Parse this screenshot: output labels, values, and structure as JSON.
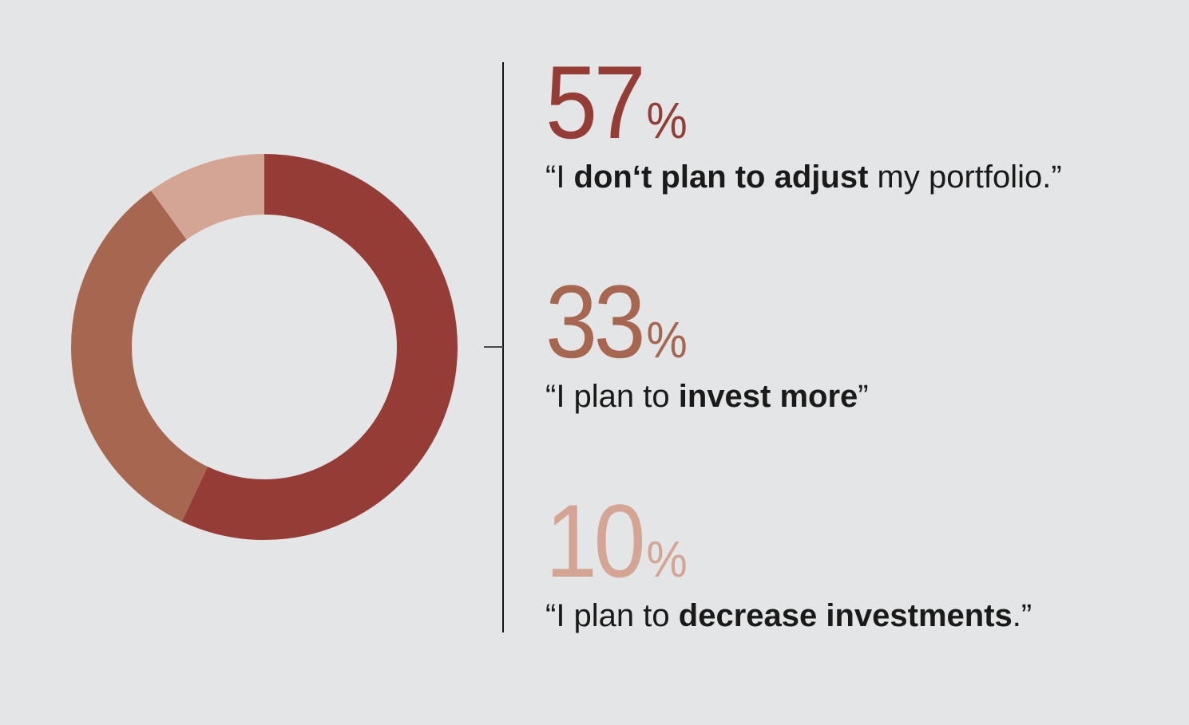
{
  "background": "#e4e5e6",
  "divider": {
    "line_color": "#141414",
    "tick_color": "#4a4a4a"
  },
  "chart_data": {
    "type": "pie",
    "subtype": "donut",
    "categories": [
      "I don‘t plan to adjust my portfolio.",
      "I plan to invest more",
      "I plan to decrease investments."
    ],
    "values": [
      57,
      33,
      10
    ],
    "colors": [
      "#963c37",
      "#a66650",
      "#d4a494"
    ],
    "start_angle_deg": 0,
    "direction": "clockwise",
    "inner_radius_ratio": 0.69,
    "legend_position": "right",
    "title": "",
    "data_labels": [
      "57%",
      "33%",
      "10%"
    ]
  },
  "stats": {
    "items": [
      {
        "value": "57",
        "percent_sign": "%",
        "color": "#963c37",
        "pre": "“I ",
        "bold": "don‘t plan to adjust",
        "post": " my portfolio.”"
      },
      {
        "value": "33",
        "percent_sign": "%",
        "color": "#a66650",
        "pre": "“I plan to ",
        "bold": "invest more",
        "post": "”"
      },
      {
        "value": "10",
        "percent_sign": "%",
        "color": "#d4a494",
        "pre": "“I plan to ",
        "bold": "decrease investments",
        "post": ".”"
      }
    ]
  }
}
